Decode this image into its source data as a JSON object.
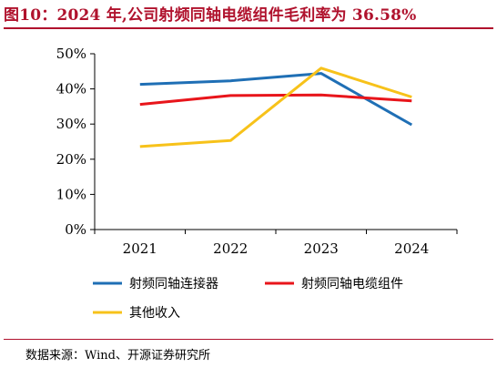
{
  "title": "图10：2024 年,公司射频同轴电缆组件毛利率为 36.58%",
  "source": "数据来源：Wind、开源证券研究所",
  "chart_data": {
    "type": "line",
    "categories": [
      "2021",
      "2022",
      "2023",
      "2024"
    ],
    "ylim": [
      0,
      50
    ],
    "yticks": [
      "0%",
      "10%",
      "20%",
      "30%",
      "40%",
      "50%"
    ],
    "grid": false,
    "legend_position": "bottom",
    "series": [
      {
        "name": "射频同轴连接器",
        "color": "#1f6fb5",
        "values": [
          41.3,
          42.3,
          44.4,
          29.8
        ]
      },
      {
        "name": "射频同轴电缆组件",
        "color": "#e8151b",
        "values": [
          35.6,
          38.1,
          38.3,
          36.58
        ]
      },
      {
        "name": "其他收入",
        "color": "#f7c21a",
        "values": [
          23.6,
          25.3,
          45.9,
          37.7
        ]
      }
    ]
  }
}
